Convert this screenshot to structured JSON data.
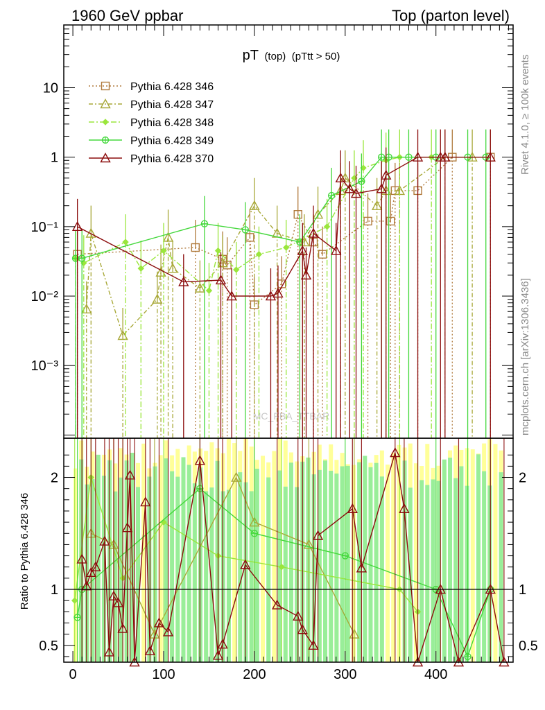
{
  "header": {
    "left": "1960 GeV ppbar",
    "right": "Top (parton level)"
  },
  "side_labels": {
    "rivet": "Rivet 4.1.0, ≥ 100k events",
    "mcplots": "mcplots.cern.ch [arXiv:1306.3436]"
  },
  "watermark": "MC_FBA_TTBAR",
  "chart_data": [
    {
      "type": "line",
      "panel": "main",
      "title_main": "pT",
      "title_sub": "(top)",
      "title_cut": "(pTtt > 50)",
      "yscale": "log",
      "xlim": [
        -10,
        485
      ],
      "ylim": [
        9e-05,
        80
      ],
      "x_tick_labels": [
        "0",
        "100",
        "200",
        "300",
        "400"
      ],
      "y_tick_labels": [
        "10⁻³",
        "10⁻²",
        "10⁻¹",
        "1",
        "10"
      ],
      "y_tick_values": [
        0.001,
        0.01,
        0.1,
        1,
        10
      ],
      "legend_position": "top-left",
      "series": [
        {
          "name": "Pythia 6.428 346",
          "color": "#b07a3c",
          "dash": "2,3",
          "marker": "square",
          "points": [
            [
              5,
              0.04
            ],
            [
              135,
              0.05
            ],
            [
              165,
              0.034
            ],
            [
              170,
              0.028
            ],
            [
              195,
              0.07
            ],
            [
              200,
              0.0075
            ],
            [
              230,
              0.015
            ],
            [
              248,
              0.15
            ],
            [
              265,
              0.06
            ],
            [
              275,
              0.04
            ],
            [
              325,
              0.12
            ],
            [
              350,
              0.12
            ],
            [
              355,
              0.33
            ],
            [
              380,
              0.33
            ],
            [
              418,
              1.0
            ],
            [
              460,
              1.0
            ]
          ]
        },
        {
          "name": "Pythia 6.428 347",
          "color": "#a8a838",
          "dash": "6,3,2,3",
          "marker": "triangle",
          "points": [
            [
              15,
              0.0065
            ],
            [
              20,
              0.08
            ],
            [
              55,
              0.0027
            ],
            [
              93,
              0.009
            ],
            [
              97,
              0.022
            ],
            [
              105,
              0.07
            ],
            [
              110,
              0.025
            ],
            [
              140,
              0.013
            ],
            [
              165,
              0.03
            ],
            [
              200,
              0.2
            ],
            [
              225,
              0.08
            ],
            [
              255,
              0.06
            ],
            [
              270,
              0.15
            ],
            [
              295,
              0.33
            ],
            [
              300,
              0.5
            ],
            [
              335,
              0.2
            ],
            [
              345,
              0.33
            ],
            [
              360,
              0.33
            ],
            [
              410,
              1.0
            ],
            [
              440,
              1.0
            ]
          ]
        },
        {
          "name": "Pythia 6.428 348",
          "color": "#9ae63c",
          "dash": "8,3,2,3",
          "marker": "diamond",
          "points": [
            [
              3,
              0.035
            ],
            [
              12,
              0.03
            ],
            [
              58,
              0.06
            ],
            [
              75,
              0.025
            ],
            [
              100,
              0.045
            ],
            [
              150,
              0.012
            ],
            [
              160,
              0.045
            ],
            [
              180,
              0.024
            ],
            [
              205,
              0.04
            ],
            [
              235,
              0.05
            ],
            [
              280,
              0.1
            ],
            [
              310,
              0.5
            ],
            [
              320,
              0.7
            ],
            [
              345,
              0.9
            ],
            [
              360,
              1.0
            ],
            [
              395,
              1.0
            ]
          ]
        },
        {
          "name": "Pythia 6.428 349",
          "color": "#44d83c",
          "dash": "",
          "marker": "cross",
          "points": [
            [
              3,
              0.035
            ],
            [
              10,
              0.035
            ],
            [
              145,
              0.11
            ],
            [
              190,
              0.09
            ],
            [
              250,
              0.06
            ],
            [
              285,
              0.28
            ],
            [
              318,
              0.45
            ],
            [
              340,
              1.0
            ],
            [
              348,
              1.0
            ],
            [
              370,
              1.0
            ],
            [
              400,
              1.0
            ],
            [
              435,
              1.0
            ],
            [
              455,
              1.0
            ]
          ]
        },
        {
          "name": "Pythia 6.428 370",
          "color": "#8b0c0c",
          "dash": "",
          "marker": "triangle",
          "points": [
            [
              5,
              0.1
            ],
            [
              122,
              0.016
            ],
            [
              163,
              0.017
            ],
            [
              175,
              0.01
            ],
            [
              218,
              0.01
            ],
            [
              226,
              0.011
            ],
            [
              253,
              0.045
            ],
            [
              257,
              0.02
            ],
            [
              265,
              0.08
            ],
            [
              290,
              0.045
            ],
            [
              295,
              0.5
            ],
            [
              305,
              0.35
            ],
            [
              312,
              0.3
            ],
            [
              340,
              0.35
            ],
            [
              345,
              0.55
            ],
            [
              380,
              1.0
            ],
            [
              405,
              1.0
            ],
            [
              410,
              1.0
            ],
            [
              460,
              1.0
            ]
          ]
        }
      ]
    },
    {
      "type": "line",
      "panel": "ratio",
      "ylabel": "Ratio to Pythia 6.428 346",
      "ylim": [
        0.35,
        2.35
      ],
      "y_tick_labels": [
        "0.5",
        "1",
        "2"
      ],
      "y_tick_values": [
        0.5,
        1,
        2
      ],
      "reference_line": 1,
      "band_colors": {
        "outer": "#ffff99",
        "inner": "#99ee99"
      },
      "series": [
        {
          "name": "Pythia 6.428 347",
          "color": "#a8a838",
          "points": [
            [
              20,
              1.5
            ],
            [
              45,
              1.4
            ],
            [
              90,
              0.6
            ],
            [
              180,
              2.0
            ],
            [
              200,
              1.6
            ],
            [
              260,
              1.4
            ],
            [
              310,
              0.6
            ]
          ]
        },
        {
          "name": "Pythia 6.428 348",
          "color": "#9ae63c",
          "points": [
            [
              2,
              0.9
            ],
            [
              20,
              2.0
            ],
            [
              55,
              1.1
            ],
            [
              100,
              1.6
            ],
            [
              160,
              1.3
            ],
            [
              230,
              1.2
            ],
            [
              360,
              1.0
            ],
            [
              380,
              0.8
            ]
          ]
        },
        {
          "name": "Pythia 6.428 349",
          "color": "#44d83c",
          "points": [
            [
              5,
              0.75
            ],
            [
              10,
              1.0
            ],
            [
              140,
              1.9
            ],
            [
              200,
              1.5
            ],
            [
              300,
              1.3
            ],
            [
              400,
              1.0
            ],
            [
              435,
              0.4
            ],
            [
              460,
              1.0
            ]
          ]
        },
        {
          "name": "Pythia 6.428 370",
          "color": "#8b0c0c",
          "points": [
            [
              10,
              1.27
            ],
            [
              15,
              1.03
            ],
            [
              20,
              1.15
            ],
            [
              25,
              1.2
            ],
            [
              35,
              1.43
            ],
            [
              40,
              0.44
            ],
            [
              45,
              0.94
            ],
            [
              50,
              0.88
            ],
            [
              55,
              0.65
            ],
            [
              60,
              1.55
            ],
            [
              63,
              2.02
            ],
            [
              68,
              0.35
            ],
            [
              80,
              1.78
            ],
            [
              85,
              0.45
            ],
            [
              95,
              0.7
            ],
            [
              105,
              0.62
            ],
            [
              140,
              2.15
            ],
            [
              160,
              0.41
            ],
            [
              165,
              0.51
            ],
            [
              190,
              1.22
            ],
            [
              225,
              0.86
            ],
            [
              248,
              0.76
            ],
            [
              253,
              0.64
            ],
            [
              265,
              0.5
            ],
            [
              270,
              1.48
            ],
            [
              308,
              1.72
            ],
            [
              318,
              1.19
            ],
            [
              355,
              2.22
            ],
            [
              365,
              1.72
            ],
            [
              380,
              0.35
            ],
            [
              405,
              1.0
            ],
            [
              425,
              0.35
            ],
            [
              460,
              1.0
            ],
            [
              475,
              0.35
            ]
          ]
        }
      ]
    }
  ]
}
